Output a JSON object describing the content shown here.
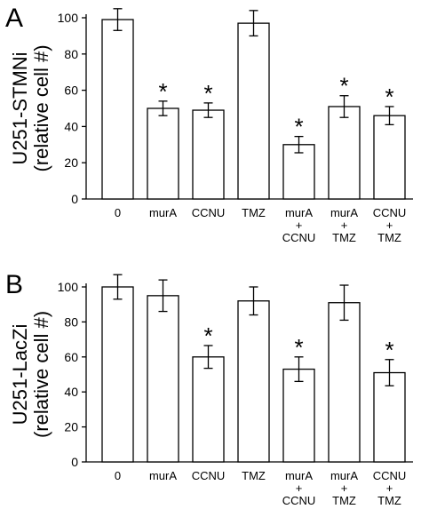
{
  "chart_data": [
    {
      "type": "bar",
      "panel_label": "A",
      "ylabel_lines": [
        "U251-STMNi",
        "(relative cell #)"
      ],
      "ylim": [
        0,
        100
      ],
      "yticks": [
        0,
        20,
        40,
        60,
        80,
        100
      ],
      "categories": [
        {
          "lines": [
            "0"
          ]
        },
        {
          "lines": [
            "murA"
          ]
        },
        {
          "lines": [
            "CCNU"
          ]
        },
        {
          "lines": [
            "TMZ"
          ]
        },
        {
          "lines": [
            "murA",
            "+",
            "CCNU"
          ]
        },
        {
          "lines": [
            "murA",
            "+",
            "TMZ"
          ]
        },
        {
          "lines": [
            "CCNU",
            "+",
            "TMZ"
          ]
        }
      ],
      "values": [
        99,
        50,
        49,
        97,
        30,
        51,
        46
      ],
      "errors": [
        6,
        4,
        4,
        7,
        4.5,
        6,
        5
      ],
      "significant": [
        false,
        true,
        true,
        false,
        true,
        true,
        true
      ],
      "significance_marker": "*",
      "bar_fill": "#ffffff",
      "bar_stroke": "#000000"
    },
    {
      "type": "bar",
      "panel_label": "B",
      "ylabel_lines": [
        "U251-LacZi",
        "(relative cell #)"
      ],
      "ylim": [
        0,
        100
      ],
      "yticks": [
        0,
        20,
        40,
        60,
        80,
        100
      ],
      "categories": [
        {
          "lines": [
            "0"
          ]
        },
        {
          "lines": [
            "murA"
          ]
        },
        {
          "lines": [
            "CCNU"
          ]
        },
        {
          "lines": [
            "TMZ"
          ]
        },
        {
          "lines": [
            "murA",
            "+",
            "CCNU"
          ]
        },
        {
          "lines": [
            "murA",
            "+",
            "TMZ"
          ]
        },
        {
          "lines": [
            "CCNU",
            "+",
            "TMZ"
          ]
        }
      ],
      "values": [
        100,
        95,
        60,
        92,
        53,
        91,
        51
      ],
      "errors": [
        7,
        9,
        6.5,
        8,
        7,
        10,
        7.5
      ],
      "significant": [
        false,
        false,
        true,
        false,
        true,
        false,
        true
      ],
      "significance_marker": "*",
      "bar_fill": "#ffffff",
      "bar_stroke": "#000000"
    }
  ]
}
